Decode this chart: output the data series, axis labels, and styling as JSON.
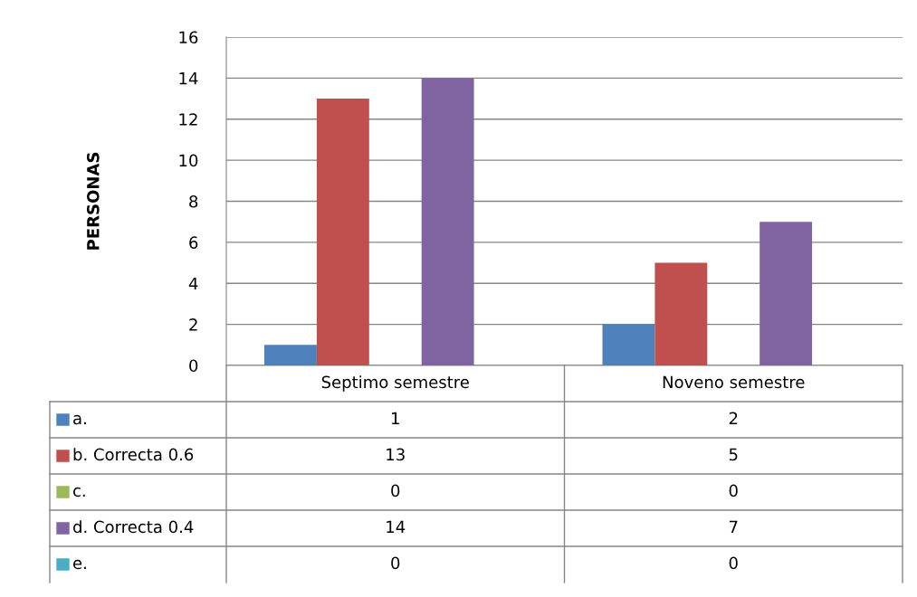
{
  "chart_data": {
    "type": "bar",
    "ylabel": "PERSONAS",
    "categories": [
      "Septimo semestre",
      "Noveno semestre"
    ],
    "series": [
      {
        "name": "a.",
        "color": "#4f81bd",
        "values": [
          1,
          2
        ]
      },
      {
        "name": "b. Correcta 0.6",
        "color": "#c0504d",
        "values": [
          13,
          5
        ]
      },
      {
        "name": "c.",
        "color": "#9bbb59",
        "values": [
          0,
          0
        ]
      },
      {
        "name": "d. Correcta 0.4",
        "color": "#8064a2",
        "values": [
          14,
          7
        ]
      },
      {
        "name": "e.",
        "color": "#4bacc6",
        "values": [
          0,
          0
        ]
      }
    ],
    "ylim": [
      0,
      16
    ],
    "yticks": [
      0,
      2,
      4,
      6,
      8,
      10,
      12,
      14,
      16
    ],
    "grid": "y",
    "legend": "bottom",
    "data_labels": true
  }
}
